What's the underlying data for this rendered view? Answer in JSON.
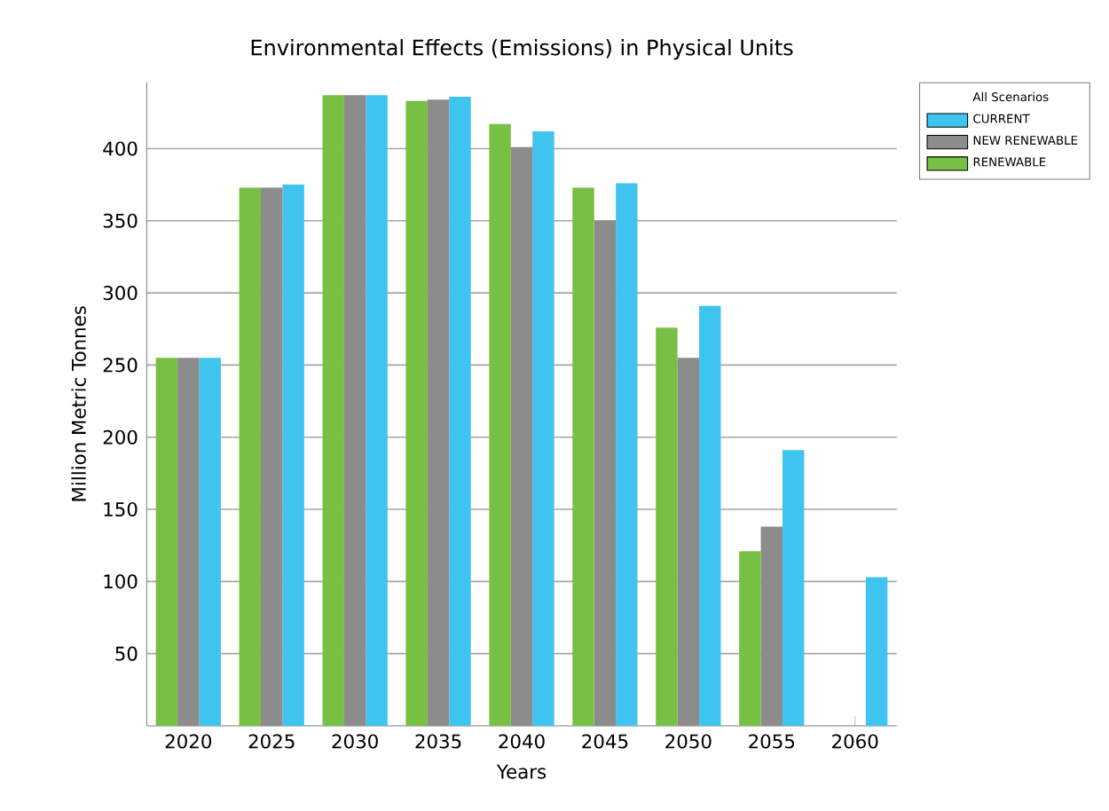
{
  "chart_data": {
    "type": "bar",
    "title": "Environmental Effects (Emissions) in Physical Units",
    "xlabel": "Years",
    "ylabel": "Million Metric Tonnes",
    "legend_title": "All Scenarios",
    "categories": [
      "2020",
      "2025",
      "2030",
      "2035",
      "2040",
      "2045",
      "2050",
      "2055",
      "2060"
    ],
    "series": [
      {
        "name": "RENEWABLE",
        "color": "#77c043",
        "values": [
          255,
          373,
          437,
          433,
          417,
          373,
          276,
          121,
          null
        ]
      },
      {
        "name": "NEW RENEWABLE",
        "color": "#8c8c8c",
        "values": [
          255,
          373,
          437,
          434,
          401,
          350,
          255,
          138,
          null
        ]
      },
      {
        "name": "CURRENT",
        "color": "#3ec4ef",
        "values": [
          255,
          375,
          437,
          436,
          412,
          376,
          291,
          191,
          103
        ]
      }
    ],
    "ylim": [
      0,
      446
    ],
    "yticks": [
      50,
      100,
      150,
      200,
      250,
      300,
      350,
      400
    ],
    "grid": "y",
    "legend": "top right"
  }
}
